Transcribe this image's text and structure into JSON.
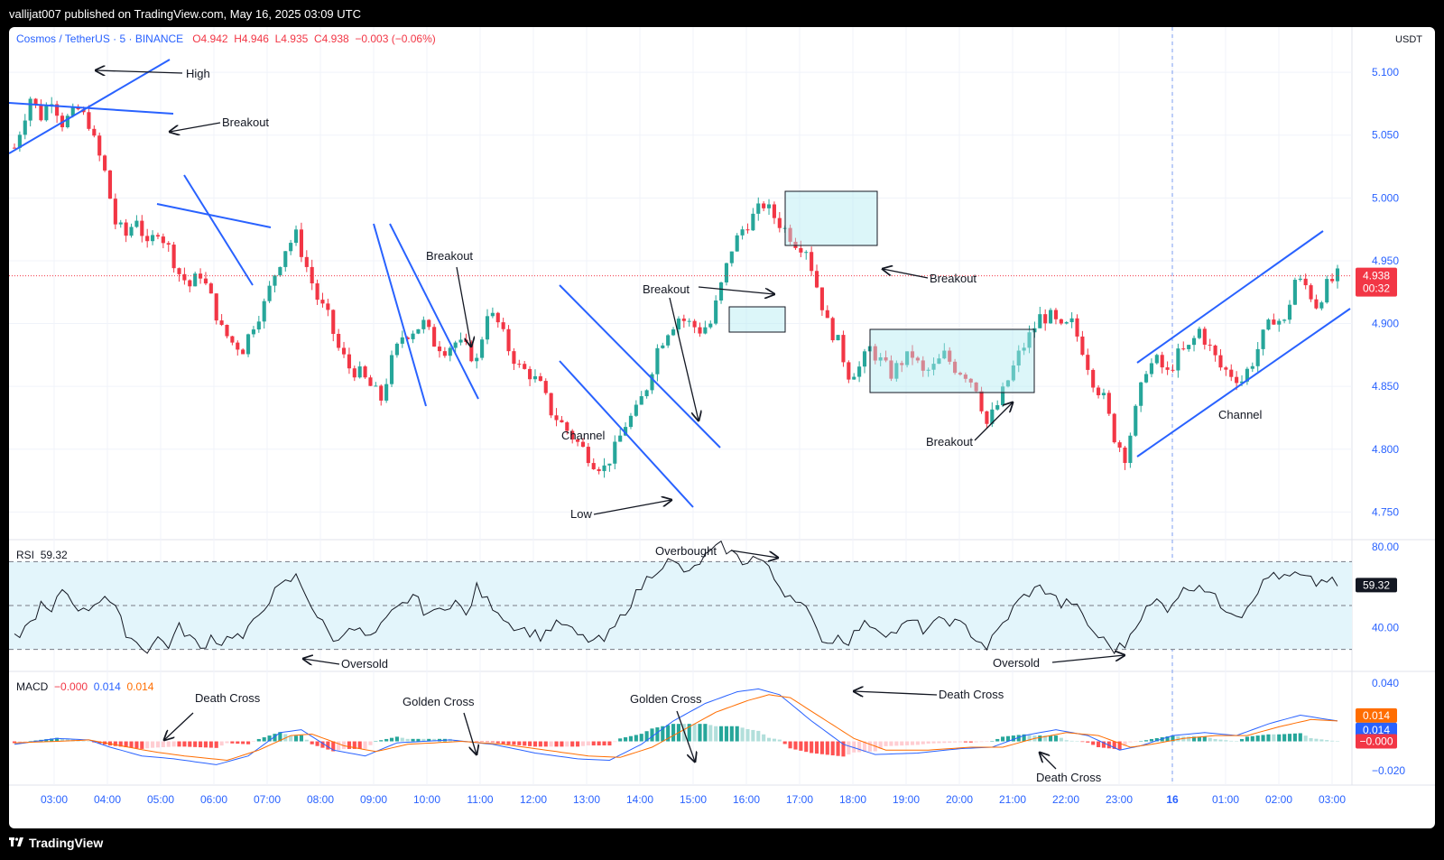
{
  "header": {
    "published": "vallijat007 published on TradingView.com, May 16, 2025 03:09 UTC"
  },
  "footer": {
    "brand": "TradingView"
  },
  "chart_data": {
    "type": "candlestick",
    "symbol": "Cosmos / TetherUS · 5 · BINANCE",
    "ohlc_label": {
      "o": "O4.942",
      "h": "H4.946",
      "l": "L4.935",
      "c": "C4.938",
      "change": "−0.003 (−0.06%)"
    },
    "currency": "USDT",
    "last_price": "4.938",
    "countdown": "00:32",
    "ylim": [
      4.728,
      5.136
    ],
    "price_ticks": [
      "5.100",
      "5.050",
      "5.000",
      "4.950",
      "4.900",
      "4.850",
      "4.800",
      "4.750"
    ],
    "x_ticks": [
      "03:00",
      "04:00",
      "05:00",
      "06:00",
      "07:00",
      "08:00",
      "09:00",
      "10:00",
      "11:00",
      "12:00",
      "13:00",
      "14:00",
      "15:00",
      "16:00",
      "17:00",
      "18:00",
      "19:00",
      "20:00",
      "21:00",
      "22:00",
      "23:00",
      "16",
      "01:00",
      "02:00",
      "03:00"
    ],
    "price_path": [
      [
        0,
        5.04
      ],
      [
        3,
        5.08
      ],
      [
        5,
        5.065
      ],
      [
        7,
        5.08
      ],
      [
        9,
        5.06
      ],
      [
        12,
        5.07
      ],
      [
        14,
        5.06
      ],
      [
        15,
        5.045
      ],
      [
        17,
        5.02
      ],
      [
        19,
        4.98
      ],
      [
        21,
        4.97
      ],
      [
        23,
        4.985
      ],
      [
        25,
        4.96
      ],
      [
        27,
        4.975
      ],
      [
        29,
        4.96
      ],
      [
        31,
        4.94
      ],
      [
        33,
        4.93
      ],
      [
        35,
        4.94
      ],
      [
        37,
        4.92
      ],
      [
        39,
        4.895
      ],
      [
        41,
        4.885
      ],
      [
        43,
        4.88
      ],
      [
        45,
        4.9
      ],
      [
        47,
        4.915
      ],
      [
        49,
        4.94
      ],
      [
        51,
        4.96
      ],
      [
        53,
        4.97
      ],
      [
        55,
        4.945
      ],
      [
        57,
        4.92
      ],
      [
        59,
        4.905
      ],
      [
        61,
        4.88
      ],
      [
        63,
        4.865
      ],
      [
        65,
        4.86
      ],
      [
        67,
        4.85
      ],
      [
        69,
        4.84
      ],
      [
        71,
        4.87
      ],
      [
        73,
        4.89
      ],
      [
        75,
        4.895
      ],
      [
        77,
        4.9
      ],
      [
        79,
        4.885
      ],
      [
        81,
        4.88
      ],
      [
        83,
        4.885
      ],
      [
        85,
        4.88
      ],
      [
        87,
        4.87
      ],
      [
        89,
        4.91
      ],
      [
        91,
        4.9
      ],
      [
        93,
        4.88
      ],
      [
        95,
        4.865
      ],
      [
        97,
        4.86
      ],
      [
        99,
        4.85
      ],
      [
        101,
        4.83
      ],
      [
        103,
        4.82
      ],
      [
        105,
        4.81
      ],
      [
        107,
        4.8
      ],
      [
        109,
        4.79
      ],
      [
        111,
        4.785
      ],
      [
        113,
        4.8
      ],
      [
        115,
        4.82
      ],
      [
        117,
        4.83
      ],
      [
        119,
        4.85
      ],
      [
        121,
        4.88
      ],
      [
        123,
        4.895
      ],
      [
        125,
        4.905
      ],
      [
        127,
        4.9
      ],
      [
        129,
        4.895
      ],
      [
        131,
        4.9
      ],
      [
        133,
        4.93
      ],
      [
        135,
        4.96
      ],
      [
        137,
        4.975
      ],
      [
        139,
        4.985
      ],
      [
        141,
        4.995
      ],
      [
        143,
        4.985
      ],
      [
        145,
        4.975
      ],
      [
        147,
        4.965
      ],
      [
        149,
        4.96
      ],
      [
        151,
        4.93
      ],
      [
        153,
        4.9
      ],
      [
        155,
        4.885
      ],
      [
        157,
        4.86
      ],
      [
        159,
        4.865
      ],
      [
        161,
        4.88
      ],
      [
        163,
        4.87
      ],
      [
        165,
        4.86
      ],
      [
        167,
        4.87
      ],
      [
        169,
        4.875
      ],
      [
        171,
        4.86
      ],
      [
        173,
        4.865
      ],
      [
        175,
        4.875
      ],
      [
        177,
        4.865
      ],
      [
        179,
        4.86
      ],
      [
        181,
        4.85
      ],
      [
        183,
        4.82
      ],
      [
        185,
        4.835
      ],
      [
        187,
        4.855
      ],
      [
        189,
        4.875
      ],
      [
        191,
        4.89
      ],
      [
        193,
        4.905
      ],
      [
        195,
        4.905
      ],
      [
        197,
        4.895
      ],
      [
        199,
        4.9
      ],
      [
        201,
        4.88
      ],
      [
        203,
        4.855
      ],
      [
        205,
        4.84
      ],
      [
        207,
        4.81
      ],
      [
        209,
        4.795
      ],
      [
        211,
        4.83
      ],
      [
        213,
        4.865
      ],
      [
        215,
        4.87
      ],
      [
        217,
        4.86
      ],
      [
        219,
        4.875
      ],
      [
        221,
        4.88
      ],
      [
        223,
        4.895
      ],
      [
        225,
        4.88
      ],
      [
        227,
        4.865
      ],
      [
        229,
        4.86
      ],
      [
        231,
        4.855
      ],
      [
        233,
        4.87
      ],
      [
        235,
        4.89
      ],
      [
        237,
        4.905
      ],
      [
        239,
        4.9
      ],
      [
        241,
        4.935
      ],
      [
        243,
        4.93
      ],
      [
        245,
        4.915
      ],
      [
        247,
        4.93
      ],
      [
        249,
        4.938
      ]
    ],
    "rsi": {
      "label": "RSI",
      "value": "59.32",
      "ylim": [
        20,
        80
      ],
      "ticks": [
        "80.00",
        "40.00"
      ],
      "overbought": 70,
      "oversold": 30,
      "mid": 50,
      "path": [
        [
          0,
          35
        ],
        [
          3,
          42
        ],
        [
          5,
          50
        ],
        [
          7,
          46
        ],
        [
          9,
          58
        ],
        [
          11,
          52
        ],
        [
          13,
          47
        ],
        [
          15,
          51
        ],
        [
          17,
          55
        ],
        [
          19,
          48
        ],
        [
          21,
          38
        ],
        [
          23,
          33
        ],
        [
          25,
          30
        ],
        [
          27,
          35
        ],
        [
          29,
          32
        ],
        [
          31,
          40
        ],
        [
          33,
          36
        ],
        [
          35,
          30
        ],
        [
          37,
          36
        ],
        [
          39,
          33
        ],
        [
          41,
          37
        ],
        [
          43,
          35
        ],
        [
          45,
          42
        ],
        [
          47,
          50
        ],
        [
          49,
          56
        ],
        [
          51,
          60
        ],
        [
          53,
          63
        ],
        [
          55,
          55
        ],
        [
          57,
          45
        ],
        [
          59,
          38
        ],
        [
          61,
          33
        ],
        [
          63,
          42
        ],
        [
          65,
          38
        ],
        [
          67,
          35
        ],
        [
          69,
          40
        ],
        [
          71,
          46
        ],
        [
          73,
          50
        ],
        [
          75,
          55
        ],
        [
          77,
          48
        ],
        [
          79,
          46
        ],
        [
          81,
          50
        ],
        [
          83,
          52
        ],
        [
          85,
          45
        ],
        [
          87,
          58
        ],
        [
          89,
          52
        ],
        [
          91,
          48
        ],
        [
          93,
          42
        ],
        [
          95,
          40
        ],
        [
          97,
          38
        ],
        [
          99,
          36
        ],
        [
          101,
          40
        ],
        [
          103,
          42
        ],
        [
          105,
          38
        ],
        [
          107,
          35
        ],
        [
          109,
          34
        ],
        [
          111,
          34
        ],
        [
          113,
          40
        ],
        [
          115,
          48
        ],
        [
          117,
          55
        ],
        [
          119,
          62
        ],
        [
          121,
          67
        ],
        [
          123,
          70
        ],
        [
          125,
          68
        ],
        [
          127,
          64
        ],
        [
          129,
          70
        ],
        [
          131,
          74
        ],
        [
          133,
          77
        ],
        [
          135,
          74
        ],
        [
          137,
          70
        ],
        [
          139,
          72
        ],
        [
          141,
          70
        ],
        [
          143,
          62
        ],
        [
          145,
          56
        ],
        [
          147,
          54
        ],
        [
          149,
          48
        ],
        [
          151,
          38
        ],
        [
          153,
          33
        ],
        [
          155,
          36
        ],
        [
          157,
          34
        ],
        [
          159,
          40
        ],
        [
          161,
          42
        ],
        [
          163,
          39
        ],
        [
          165,
          37
        ],
        [
          167,
          40
        ],
        [
          169,
          43
        ],
        [
          171,
          39
        ],
        [
          173,
          41
        ],
        [
          175,
          44
        ],
        [
          177,
          42
        ],
        [
          179,
          40
        ],
        [
          181,
          35
        ],
        [
          183,
          31
        ],
        [
          185,
          38
        ],
        [
          187,
          45
        ],
        [
          189,
          52
        ],
        [
          191,
          56
        ],
        [
          193,
          58
        ],
        [
          195,
          56
        ],
        [
          197,
          50
        ],
        [
          199,
          52
        ],
        [
          201,
          45
        ],
        [
          203,
          38
        ],
        [
          205,
          34
        ],
        [
          207,
          30
        ],
        [
          209,
          32
        ],
        [
          211,
          42
        ],
        [
          213,
          48
        ],
        [
          215,
          52
        ],
        [
          217,
          49
        ],
        [
          219,
          55
        ],
        [
          221,
          58
        ],
        [
          223,
          60
        ],
        [
          225,
          56
        ],
        [
          227,
          50
        ],
        [
          229,
          48
        ],
        [
          231,
          46
        ],
        [
          233,
          54
        ],
        [
          235,
          60
        ],
        [
          237,
          65
        ],
        [
          239,
          62
        ],
        [
          241,
          64
        ],
        [
          243,
          62
        ],
        [
          245,
          60
        ],
        [
          247,
          62
        ],
        [
          249,
          59
        ]
      ]
    },
    "macd": {
      "label": "MACD",
      "hist_value": "−0.000",
      "macd_value": "0.014",
      "signal_value": "0.014",
      "ylim": [
        -0.03,
        0.048
      ],
      "ticks": [
        "0.040",
        "−0.020"
      ],
      "axis_tags": [
        "0.014",
        "0.014",
        "−0.000"
      ],
      "macd_path": [
        [
          0,
          -0.002
        ],
        [
          8,
          0.002
        ],
        [
          14,
          0.001
        ],
        [
          18,
          -0.004
        ],
        [
          24,
          -0.01
        ],
        [
          30,
          -0.012
        ],
        [
          38,
          -0.016
        ],
        [
          44,
          -0.01
        ],
        [
          50,
          0.006
        ],
        [
          54,
          0.008
        ],
        [
          60,
          -0.006
        ],
        [
          66,
          -0.01
        ],
        [
          72,
          -0.001
        ],
        [
          82,
          0.001
        ],
        [
          90,
          -0.002
        ],
        [
          98,
          -0.008
        ],
        [
          106,
          -0.012
        ],
        [
          112,
          -0.013
        ],
        [
          118,
          -0.002
        ],
        [
          124,
          0.014
        ],
        [
          130,
          0.026
        ],
        [
          136,
          0.034
        ],
        [
          140,
          0.036
        ],
        [
          144,
          0.032
        ],
        [
          150,
          0.014
        ],
        [
          156,
          -0.002
        ],
        [
          162,
          -0.009
        ],
        [
          170,
          -0.008
        ],
        [
          178,
          -0.005
        ],
        [
          184,
          -0.004
        ],
        [
          190,
          0.004
        ],
        [
          196,
          0.008
        ],
        [
          202,
          0.004
        ],
        [
          208,
          -0.006
        ],
        [
          212,
          -0.003
        ],
        [
          218,
          0.004
        ],
        [
          224,
          0.006
        ],
        [
          230,
          0.004
        ],
        [
          236,
          0.012
        ],
        [
          242,
          0.018
        ],
        [
          249,
          0.014
        ]
      ],
      "signal_path": [
        [
          0,
          -0.001
        ],
        [
          8,
          0.0
        ],
        [
          14,
          0.001
        ],
        [
          20,
          -0.003
        ],
        [
          26,
          -0.007
        ],
        [
          32,
          -0.01
        ],
        [
          40,
          -0.013
        ],
        [
          46,
          -0.006
        ],
        [
          52,
          0.004
        ],
        [
          56,
          0.005
        ],
        [
          62,
          -0.003
        ],
        [
          68,
          -0.007
        ],
        [
          74,
          -0.002
        ],
        [
          84,
          0.0
        ],
        [
          92,
          -0.002
        ],
        [
          100,
          -0.006
        ],
        [
          108,
          -0.01
        ],
        [
          114,
          -0.011
        ],
        [
          120,
          -0.004
        ],
        [
          126,
          0.008
        ],
        [
          132,
          0.02
        ],
        [
          138,
          0.028
        ],
        [
          142,
          0.032
        ],
        [
          146,
          0.03
        ],
        [
          152,
          0.016
        ],
        [
          158,
          0.002
        ],
        [
          164,
          -0.006
        ],
        [
          172,
          -0.006
        ],
        [
          180,
          -0.004
        ],
        [
          186,
          -0.004
        ],
        [
          192,
          0.002
        ],
        [
          198,
          0.006
        ],
        [
          204,
          0.004
        ],
        [
          210,
          -0.004
        ],
        [
          214,
          -0.002
        ],
        [
          220,
          0.002
        ],
        [
          226,
          0.004
        ],
        [
          232,
          0.004
        ],
        [
          238,
          0.01
        ],
        [
          244,
          0.015
        ],
        [
          249,
          0.014
        ]
      ]
    },
    "annotations": {
      "high": "High",
      "breakout1": "Breakout",
      "breakout2": "Breakout",
      "breakout3": "Breakout",
      "breakout4": "Breakout",
      "breakout5": "Breakout",
      "channel1": "Channel",
      "channel2": "Channel",
      "low": "Low",
      "overbought": "Overbought",
      "oversold1": "Oversold",
      "oversold2": "Oversold",
      "death_cross1": "Death Cross",
      "death_cross2": "Death Cross",
      "death_cross3": "Death Cross",
      "golden_cross1": "Golden Cross",
      "golden_cross2": "Golden Cross"
    },
    "colors": {
      "up": "#26a69a",
      "down": "#f23645",
      "trendline": "#2962ff",
      "macd": "#2962ff",
      "signal": "#ff6d00",
      "rsi_band": "#e3f5fb"
    }
  }
}
